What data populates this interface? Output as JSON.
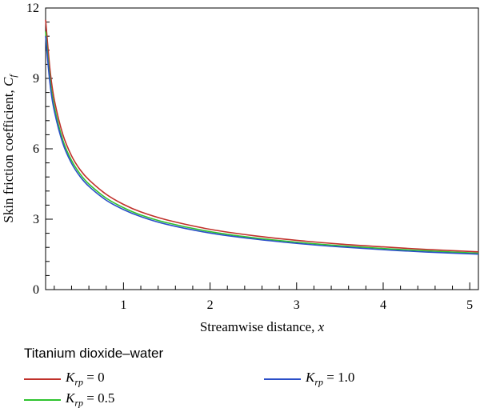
{
  "chart_data": {
    "type": "line",
    "xlabel_text": "Streamwise distance, ",
    "xlabel_var": "x",
    "ylabel_text": "Skin friction coefficient, ",
    "ylabel_var": "C",
    "ylabel_sub": "f",
    "xlim": [
      0.1,
      5.1
    ],
    "ylim": [
      0,
      12
    ],
    "x_ticks": [
      1,
      2,
      3,
      4,
      5
    ],
    "y_ticks": [
      0,
      3,
      6,
      9,
      12
    ],
    "legend_title": "Titanium dioxide–water",
    "series": [
      {
        "name": "K_rp = 0",
        "label_var": "K",
        "label_sub": "rp",
        "label_value": " = 0",
        "color": "#c0312b",
        "x": [
          0.1,
          0.15,
          0.2,
          0.3,
          0.4,
          0.5,
          0.6,
          0.8,
          1.0,
          1.2,
          1.5,
          2.0,
          2.5,
          3.0,
          3.5,
          4.0,
          4.5,
          5.1
        ],
        "y": [
          11.5,
          9.4,
          8.1,
          6.6,
          5.7,
          5.1,
          4.68,
          4.06,
          3.63,
          3.31,
          2.97,
          2.57,
          2.3,
          2.1,
          1.94,
          1.82,
          1.71,
          1.61
        ]
      },
      {
        "name": "K_rp = 0.5",
        "label_var": "K",
        "label_sub": "rp",
        "label_value": " = 0.5",
        "color": "#2fc32f",
        "x": [
          0.1,
          0.15,
          0.2,
          0.3,
          0.4,
          0.5,
          0.6,
          0.8,
          1.0,
          1.2,
          1.5,
          2.0,
          2.5,
          3.0,
          3.5,
          4.0,
          4.5,
          5.1
        ],
        "y": [
          11.0,
          9.0,
          7.8,
          6.36,
          5.5,
          4.92,
          4.5,
          3.9,
          3.49,
          3.18,
          2.85,
          2.47,
          2.21,
          2.02,
          1.87,
          1.75,
          1.65,
          1.55
        ]
      },
      {
        "name": "K_rp = 1.0",
        "label_var": "K",
        "label_sub": "rp",
        "label_value": " = 1.0",
        "color": "#2b4fc8",
        "x": [
          0.1,
          0.15,
          0.2,
          0.3,
          0.4,
          0.5,
          0.6,
          0.8,
          1.0,
          1.2,
          1.5,
          2.0,
          2.5,
          3.0,
          3.5,
          4.0,
          4.5,
          5.1
        ],
        "y": [
          10.8,
          8.8,
          7.62,
          6.22,
          5.38,
          4.81,
          4.4,
          3.81,
          3.41,
          3.11,
          2.78,
          2.41,
          2.16,
          1.97,
          1.82,
          1.7,
          1.6,
          1.51
        ]
      }
    ],
    "grid": false,
    "legend_position": "bottom"
  }
}
